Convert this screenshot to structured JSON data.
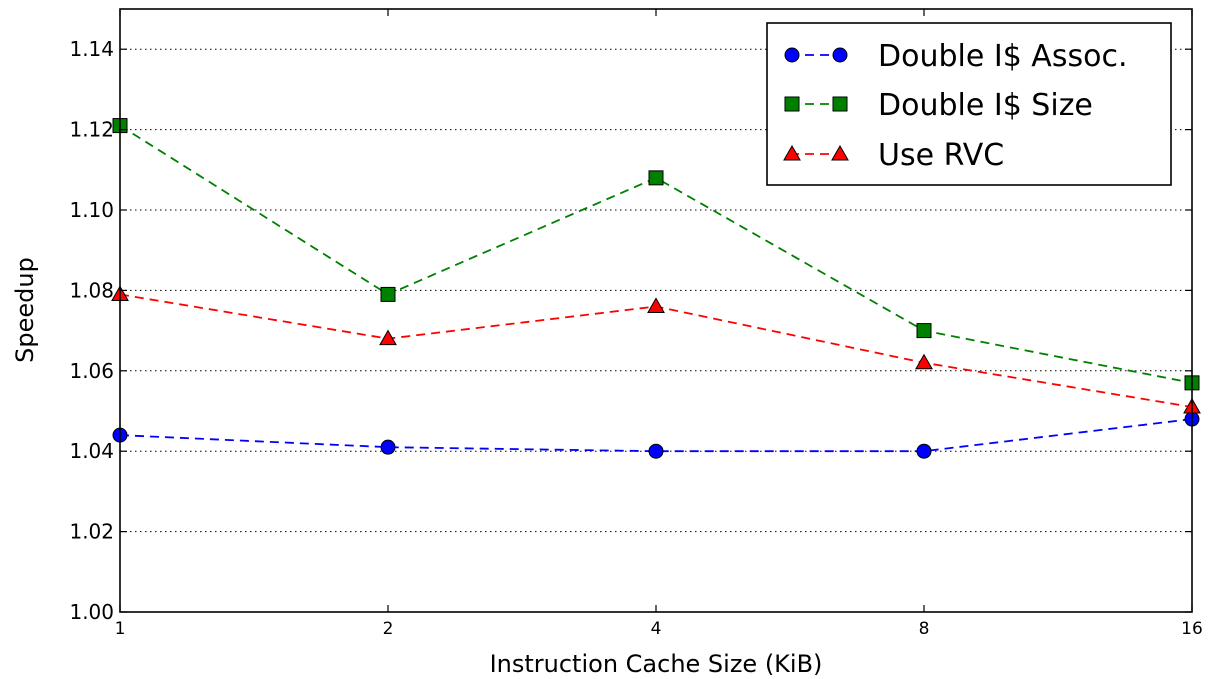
{
  "chart_data": {
    "type": "line",
    "xlabel": "Instruction Cache Size (KiB)",
    "ylabel": "Speedup",
    "x_scale": "log2",
    "x": [
      1,
      2,
      4,
      8,
      16
    ],
    "x_tick_labels": [
      "1",
      "2",
      "4",
      "8",
      "16"
    ],
    "ylim": [
      1.0,
      1.15
    ],
    "y_ticks": [
      1.0,
      1.02,
      1.04,
      1.06,
      1.08,
      1.1,
      1.12,
      1.14
    ],
    "y_tick_labels": [
      "1.00",
      "1.02",
      "1.04",
      "1.06",
      "1.08",
      "1.10",
      "1.12",
      "1.14"
    ],
    "grid": "horizontal dotted",
    "legend_position": "top-right",
    "series": [
      {
        "name": "Double I$ Assoc.",
        "color": "#0000ff",
        "marker": "circle",
        "linestyle": "dashed",
        "values": [
          1.044,
          1.041,
          1.04,
          1.04,
          1.048
        ]
      },
      {
        "name": "Double I$ Size",
        "color": "#008000",
        "marker": "square",
        "linestyle": "dashed",
        "values": [
          1.121,
          1.079,
          1.108,
          1.07,
          1.057
        ]
      },
      {
        "name": "Use RVC",
        "color": "#ff0000",
        "marker": "triangle",
        "linestyle": "dashed",
        "values": [
          1.079,
          1.068,
          1.076,
          1.062,
          1.051
        ]
      }
    ]
  }
}
